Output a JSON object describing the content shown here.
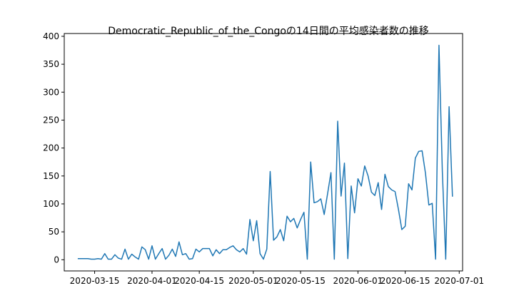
{
  "chart_data": {
    "type": "line",
    "title": "Democratic_Republic_of_the_Congoの14日間の平均感染者数の推移",
    "xlabel": "",
    "ylabel": "",
    "x_start": "2020-03-10",
    "x_tick_labels": [
      "2020-03-15",
      "2020-04-01",
      "2020-04-15",
      "2020-05-01",
      "2020-05-15",
      "2020-06-01",
      "2020-06-15",
      "2020-07-01"
    ],
    "x_ticks": [
      "2020-03-15",
      "2020-04-01",
      "2020-04-15",
      "2020-05-01",
      "2020-05-15",
      "2020-06-01",
      "2020-06-15",
      "2020-07-01"
    ],
    "y_ticks": [
      0,
      50,
      100,
      150,
      200,
      250,
      300,
      350,
      400
    ],
    "xlim": [
      "2020-03-06",
      "2020-07-02"
    ],
    "ylim": [
      -20,
      405
    ],
    "line_color": "#1f77b4",
    "values": [
      2,
      2,
      2,
      2,
      1,
      1,
      2,
      1,
      11,
      1,
      1,
      9,
      3,
      1,
      19,
      1,
      10,
      5,
      1,
      23,
      18,
      1,
      25,
      1,
      11,
      20,
      1,
      8,
      19,
      6,
      32,
      9,
      11,
      1,
      2,
      19,
      14,
      20,
      20,
      20,
      7,
      18,
      11,
      18,
      18,
      22,
      25,
      18,
      14,
      20,
      10,
      72,
      34,
      70,
      11,
      1,
      19,
      158,
      35,
      41,
      54,
      34,
      78,
      68,
      74,
      57,
      72,
      85,
      1,
      175,
      102,
      104,
      109,
      81,
      118,
      156,
      1,
      248,
      114,
      173,
      2,
      132,
      84,
      145,
      132,
      168,
      150,
      121,
      115,
      138,
      90,
      153,
      131,
      125,
      122,
      90,
      54,
      60,
      136,
      125,
      182,
      194,
      195,
      155,
      98,
      101,
      1,
      384,
      158,
      1,
      274,
      113
    ]
  }
}
